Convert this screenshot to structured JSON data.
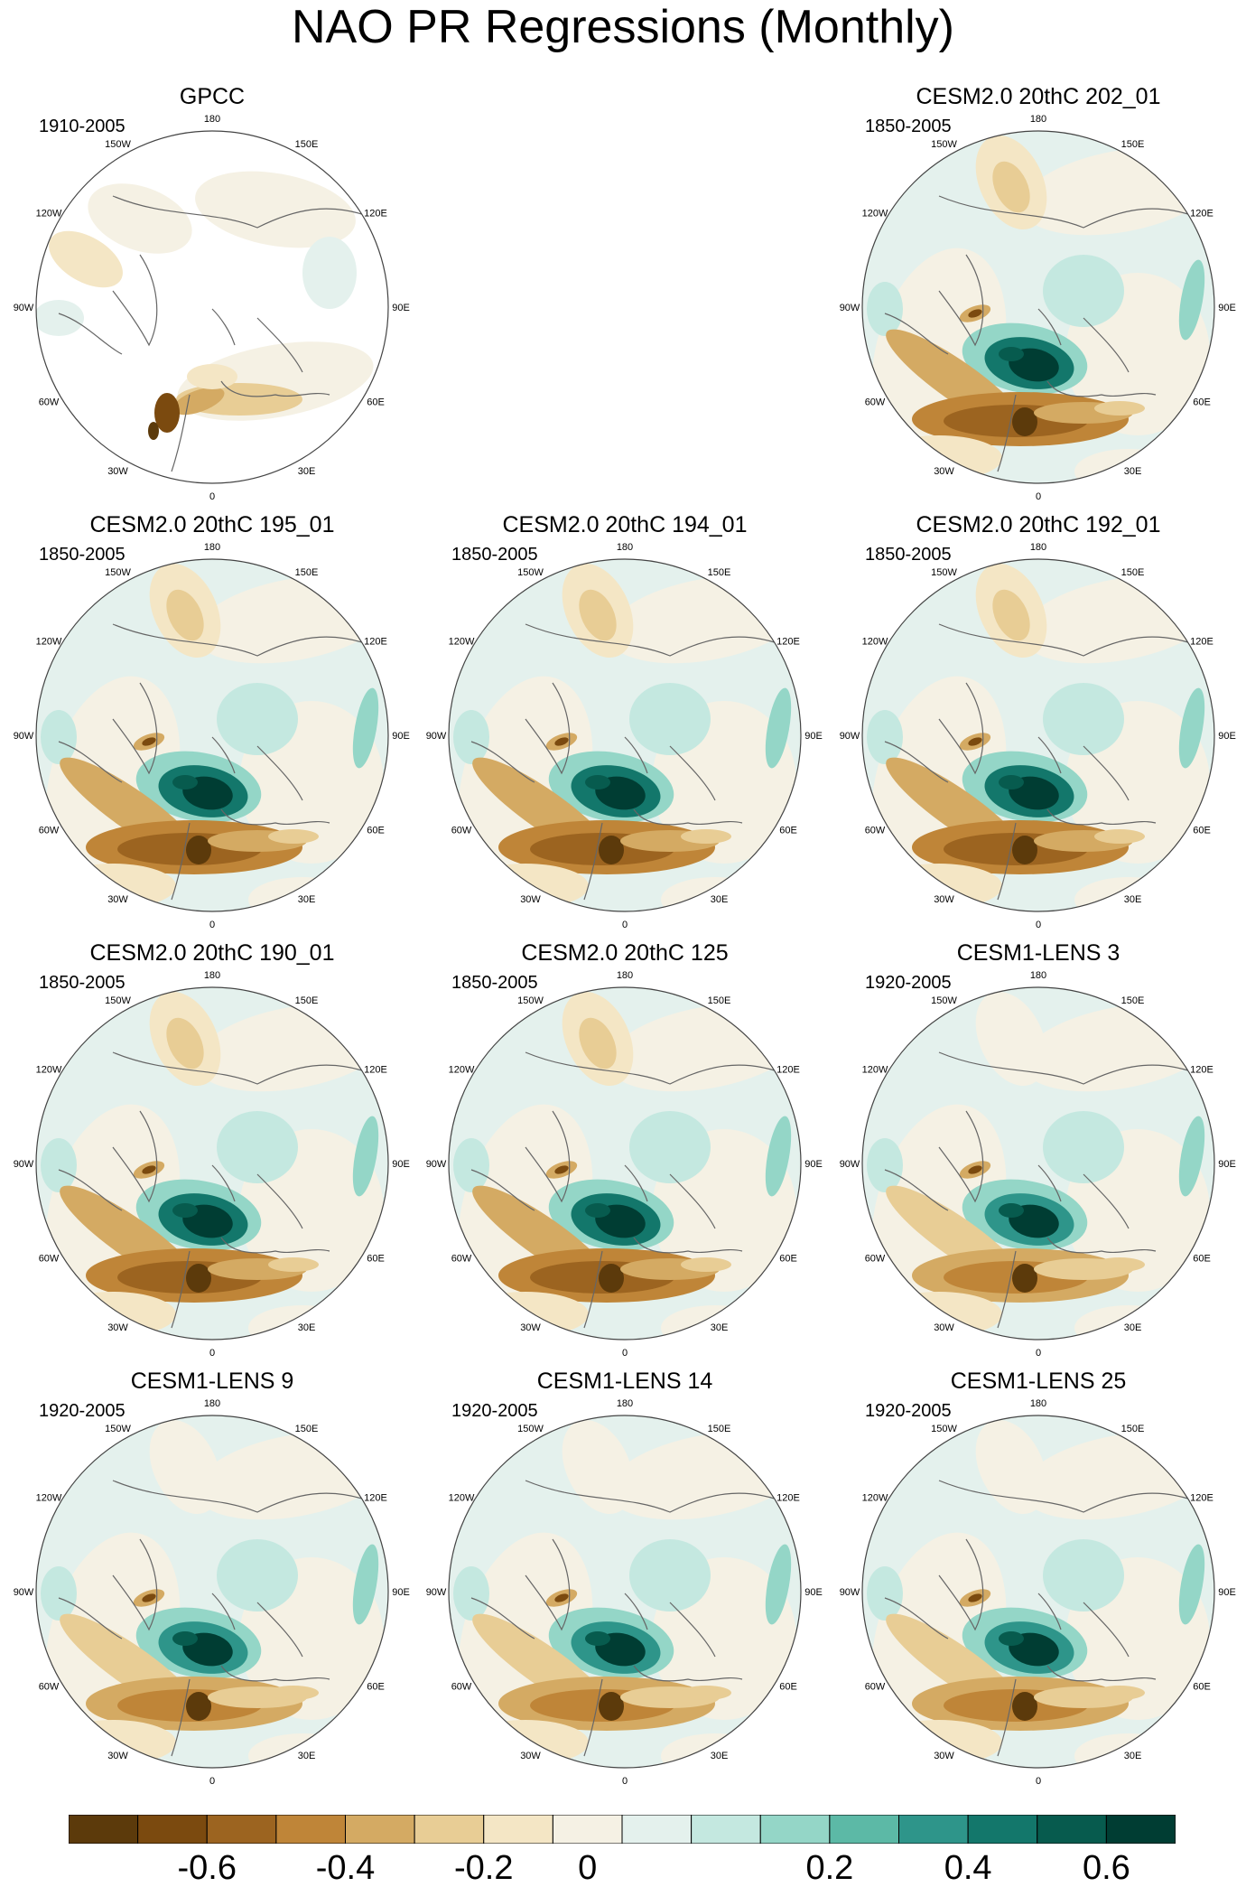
{
  "title": "NAO PR Regressions (Monthly)",
  "chart_data": {
    "type": "heatmap",
    "projection": "polar stereographic, North Pole centered",
    "panels": [
      {
        "slot": 0,
        "title": "GPCC",
        "years": "1910-2005",
        "pattern": "obs"
      },
      {
        "slot": 2,
        "title": "CESM2.0 20thC 202_01",
        "years": "1850-2005",
        "pattern": "model"
      },
      {
        "slot": 3,
        "title": "CESM2.0 20thC 195_01",
        "years": "1850-2005",
        "pattern": "model"
      },
      {
        "slot": 4,
        "title": "CESM2.0 20thC 194_01",
        "years": "1850-2005",
        "pattern": "model"
      },
      {
        "slot": 5,
        "title": "CESM2.0 20thC 192_01",
        "years": "1850-2005",
        "pattern": "model"
      },
      {
        "slot": 6,
        "title": "CESM2.0 20thC 190_01",
        "years": "1850-2005",
        "pattern": "model"
      },
      {
        "slot": 7,
        "title": "CESM2.0 20thC 125",
        "years": "1850-2005",
        "pattern": "model"
      },
      {
        "slot": 8,
        "title": "CESM1-LENS 3",
        "years": "1920-2005",
        "pattern": "lens"
      },
      {
        "slot": 9,
        "title": "CESM1-LENS 9",
        "years": "1920-2005",
        "pattern": "lens"
      },
      {
        "slot": 10,
        "title": "CESM1-LENS 14",
        "years": "1920-2005",
        "pattern": "lens"
      },
      {
        "slot": 11,
        "title": "CESM1-LENS 25",
        "years": "1920-2005",
        "pattern": "lens"
      }
    ],
    "longitude_labels": [
      "180",
      "150E",
      "120E",
      "90E",
      "60E",
      "30E",
      "0",
      "30W",
      "60W",
      "90W",
      "120W",
      "150W"
    ],
    "colorbar": {
      "colors": [
        "#5c3a0b",
        "#7b4a0f",
        "#9c6420",
        "#bf8538",
        "#d4aa63",
        "#e8cd95",
        "#f4e6c5",
        "#f5f1e4",
        "#e4f1ed",
        "#c4e8e0",
        "#94d6c7",
        "#5cb9a6",
        "#2e958a",
        "#13776b",
        "#075b4e",
        "#003d33"
      ],
      "tick_labels": [
        "-0.6",
        "-0.4",
        "-0.2",
        "0",
        "0.2",
        "0.4",
        "0.6"
      ],
      "tick_values": [
        -0.6,
        -0.4,
        -0.2,
        0,
        0.2,
        0.4,
        0.6
      ],
      "levels": [
        -0.7,
        -0.6,
        -0.5,
        -0.4,
        -0.3,
        -0.2,
        -0.1,
        -0.05,
        0.05,
        0.1,
        0.2,
        0.3,
        0.4,
        0.5,
        0.6,
        0.7
      ],
      "units": ""
    }
  }
}
